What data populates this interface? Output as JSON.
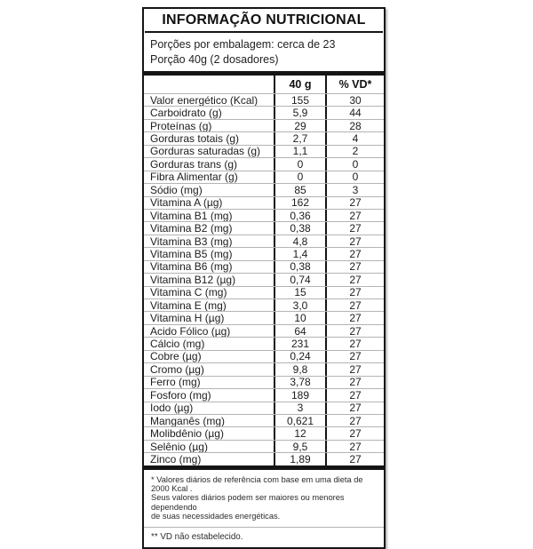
{
  "label": {
    "title": "INFORMAÇÃO NUTRICIONAL",
    "servings_line": "Porções por embalagem: cerca de 23",
    "portion_line": "Porção 40g (2 dosadores)",
    "columns": {
      "amount": "40 g",
      "dv": "% VD*"
    },
    "rows": [
      {
        "label": "Valor energético (Kcal)",
        "amount": "155",
        "dv": "30"
      },
      {
        "label": "Carboidrato (g)",
        "amount": "5,9",
        "dv": "44"
      },
      {
        "label": "Proteínas (g)",
        "amount": "29",
        "dv": "28"
      },
      {
        "label": "Gorduras totais (g)",
        "amount": "2,7",
        "dv": "4"
      },
      {
        "label": "Gorduras saturadas (g)",
        "amount": "1,1",
        "dv": "2"
      },
      {
        "label": "Gorduras trans (g)",
        "amount": "0",
        "dv": "0"
      },
      {
        "label": "Fibra Alimentar (g)",
        "amount": "0",
        "dv": "0"
      },
      {
        "label": "Sódio (mg)",
        "amount": "85",
        "dv": "3"
      },
      {
        "label": "Vitamina A (µg)",
        "amount": "162",
        "dv": "27"
      },
      {
        "label": "Vitamina B1 (mg)",
        "amount": "0,36",
        "dv": "27"
      },
      {
        "label": "Vitamina B2 (mg)",
        "amount": "0,38",
        "dv": "27"
      },
      {
        "label": "Vitamina B3 (mg)",
        "amount": "4,8",
        "dv": "27"
      },
      {
        "label": "Vitamina B5 (mg)",
        "amount": "1,4",
        "dv": "27"
      },
      {
        "label": "Vitamina B6 (mg)",
        "amount": "0,38",
        "dv": "27"
      },
      {
        "label": "Vitamina B12 (µg)",
        "amount": "0,74",
        "dv": "27"
      },
      {
        "label": "Vitamina C (mg)",
        "amount": "15",
        "dv": "27"
      },
      {
        "label": "Vitamina E (mg)",
        "amount": "3,0",
        "dv": "27"
      },
      {
        "label": "Vitamina H (µg)",
        "amount": "10",
        "dv": "27"
      },
      {
        "label": "Acido Fólico (µg)",
        "amount": "64",
        "dv": "27"
      },
      {
        "label": "Cálcio (mg)",
        "amount": "231",
        "dv": "27"
      },
      {
        "label": "Cobre (µg)",
        "amount": "0,24",
        "dv": "27"
      },
      {
        "label": "Cromo (µg)",
        "amount": "9,8",
        "dv": "27"
      },
      {
        "label": "Ferro (mg)",
        "amount": "3,78",
        "dv": "27"
      },
      {
        "label": "Fosforo (mg)",
        "amount": "189",
        "dv": "27"
      },
      {
        "label": "Iodo (µg)",
        "amount": "3",
        "dv": "27"
      },
      {
        "label": "Manganês (mg)",
        "amount": "0,621",
        "dv": "27"
      },
      {
        "label": "Molibdênio (µg)",
        "amount": "12",
        "dv": "27"
      },
      {
        "label": "Selênio (µg)",
        "amount": "9,5",
        "dv": "27"
      },
      {
        "label": "Zinco (mg)",
        "amount": "1,89",
        "dv": "27"
      }
    ],
    "footnote1_lines": [
      "* Valores diários de referência com base em uma dieta de 2000 Kcal .",
      "Seus valores diários podem ser maiores ou menores dependendo",
      "de suas necessidades energéticas."
    ],
    "footnote2": "** VD não estabelecido."
  },
  "colors": {
    "border": "#151515",
    "separator": "#b4b4b4",
    "text": "#1a1a1a",
    "background": "#ffffff"
  }
}
